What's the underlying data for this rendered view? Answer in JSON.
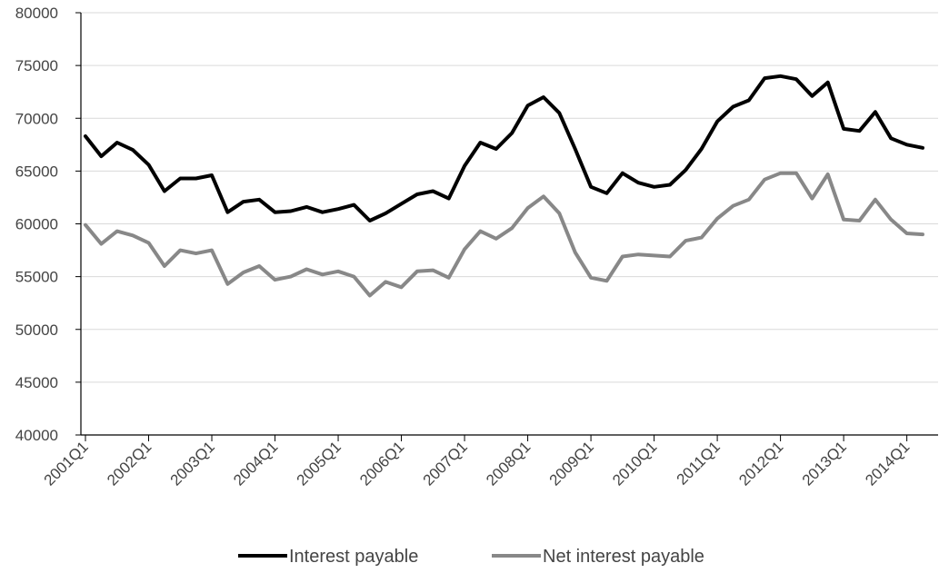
{
  "chart_data": {
    "type": "line",
    "title": "",
    "xlabel": "",
    "ylabel": "",
    "ylim": [
      40000,
      80000
    ],
    "yticks": [
      40000,
      45000,
      50000,
      55000,
      60000,
      65000,
      70000,
      75000,
      80000
    ],
    "grid": "horizontal",
    "legend_position": "bottom",
    "x": [
      "2001Q1",
      "2001Q2",
      "2001Q3",
      "2001Q4",
      "2002Q1",
      "2002Q2",
      "2002Q3",
      "2002Q4",
      "2003Q1",
      "2003Q2",
      "2003Q3",
      "2003Q4",
      "2004Q1",
      "2004Q2",
      "2004Q3",
      "2004Q4",
      "2005Q1",
      "2005Q2",
      "2005Q3",
      "2005Q4",
      "2006Q1",
      "2006Q2",
      "2006Q3",
      "2006Q4",
      "2007Q1",
      "2007Q2",
      "2007Q3",
      "2007Q4",
      "2008Q1",
      "2008Q2",
      "2008Q3",
      "2008Q4",
      "2009Q1",
      "2009Q2",
      "2009Q3",
      "2009Q4",
      "2010Q1",
      "2010Q2",
      "2010Q3",
      "2010Q4",
      "2011Q1",
      "2011Q2",
      "2011Q3",
      "2011Q4",
      "2012Q1",
      "2012Q2",
      "2012Q3",
      "2012Q4",
      "2013Q1",
      "2013Q2",
      "2013Q3",
      "2013Q4",
      "2014Q1",
      "2014Q2"
    ],
    "x_tick_labels": [
      "2001Q1",
      "2002Q1",
      "2003Q1",
      "2004Q1",
      "2005Q1",
      "2006Q1",
      "2007Q1",
      "2008Q1",
      "2009Q1",
      "2010Q1",
      "2011Q1",
      "2012Q1",
      "2013Q1",
      "2014Q1"
    ],
    "series": [
      {
        "name": "Interest payable",
        "color": "#000000",
        "values": [
          68300,
          66400,
          67700,
          67000,
          65600,
          63100,
          64300,
          64300,
          64600,
          61100,
          62100,
          62300,
          61100,
          61200,
          61600,
          61100,
          61400,
          61800,
          60300,
          61000,
          61900,
          62800,
          63100,
          62400,
          65500,
          67700,
          67100,
          68600,
          71200,
          72000,
          70500,
          67100,
          63500,
          62900,
          64800,
          63900,
          63500,
          63700,
          65100,
          67100,
          69700,
          71100,
          71700,
          73800,
          74000,
          73700,
          72100,
          73400,
          69000,
          68800,
          70600,
          68100,
          67500,
          67200
        ]
      },
      {
        "name": "Net interest payable",
        "color": "#888888",
        "values": [
          59900,
          58100,
          59300,
          58900,
          58200,
          56000,
          57500,
          57200,
          57500,
          54300,
          55400,
          56000,
          54700,
          55000,
          55700,
          55200,
          55500,
          55000,
          53200,
          54500,
          54000,
          55500,
          55600,
          54900,
          57600,
          59300,
          58600,
          59600,
          61500,
          62600,
          61000,
          57300,
          54900,
          54600,
          56900,
          57100,
          57000,
          56900,
          58400,
          58700,
          60500,
          61700,
          62300,
          64200,
          64800,
          64800,
          62400,
          64700,
          60400,
          60300,
          62300,
          60400,
          59100,
          59000
        ]
      }
    ]
  }
}
